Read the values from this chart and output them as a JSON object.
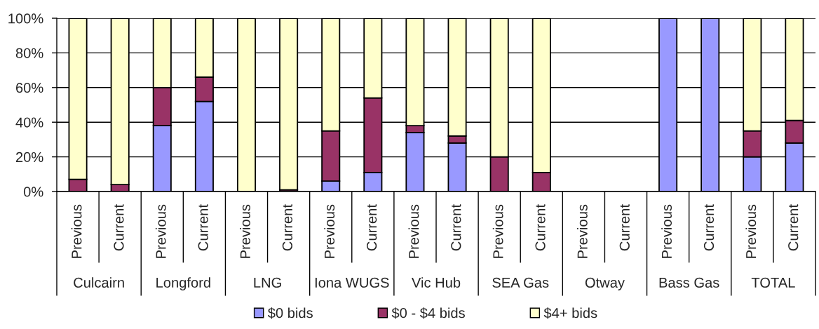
{
  "chart_data": {
    "type": "bar",
    "stacked": true,
    "categories": [
      "Previous",
      "Current",
      "Previous",
      "Current",
      "Previous",
      "Current",
      "Previous",
      "Current",
      "Previous",
      "Current",
      "Previous",
      "Current",
      "Previous",
      "Current",
      "Previous",
      "Current",
      "Previous",
      "Current"
    ],
    "annotations": [
      "Culcairn",
      "Longford",
      "LNG",
      "Iona WUGS",
      "Vic Hub",
      "SEA Gas",
      "Otway",
      "Bass Gas",
      "TOTAL"
    ],
    "series": [
      {
        "name": "$0 bids",
        "color": "#9999ff",
        "values": [
          0,
          0,
          38,
          52,
          0,
          0,
          6,
          11,
          34,
          28,
          0,
          0,
          null,
          null,
          100,
          100,
          20,
          28
        ]
      },
      {
        "name": "$0 - $4 bids",
        "color": "#993366",
        "values": [
          7,
          4,
          22,
          14,
          0,
          1,
          29,
          43,
          4,
          4,
          20,
          11,
          null,
          null,
          0,
          0,
          15,
          13
        ]
      },
      {
        "name": "$4+ bids",
        "color": "#ffffcc",
        "values": [
          93,
          96,
          40,
          34,
          100,
          99,
          65,
          46,
          62,
          68,
          80,
          89,
          null,
          null,
          0,
          0,
          65,
          59
        ]
      }
    ],
    "ylim": [
      0,
      100
    ],
    "yticks": [
      {
        "value": 0,
        "label": "0%"
      },
      {
        "value": 20,
        "label": "20%"
      },
      {
        "value": 40,
        "label": "40%"
      },
      {
        "value": 60,
        "label": "60%"
      },
      {
        "value": 80,
        "label": "80%"
      },
      {
        "value": 100,
        "label": "100%"
      }
    ],
    "grid": "y",
    "legend": "bottom"
  }
}
